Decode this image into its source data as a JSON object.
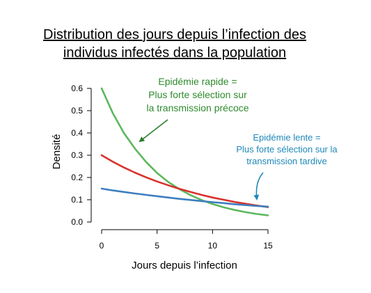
{
  "chart_data": {
    "type": "line",
    "title": "Distribution des jours depuis l’infection des individus infectés dans la population",
    "title_lines": [
      "Distribution des jours depuis l’infection des",
      "individus infectés dans la population"
    ],
    "xlabel": "Jours depuis l’infection",
    "ylabel": "Densité",
    "xlim": [
      0,
      15
    ],
    "ylim": [
      0,
      0.6
    ],
    "x_ticks": [
      0,
      5,
      10,
      15
    ],
    "y_ticks": [
      0.0,
      0.1,
      0.2,
      0.3,
      0.4,
      0.5,
      0.6
    ],
    "x_tick_labels": [
      "0",
      "5",
      "10",
      "15"
    ],
    "y_tick_labels": [
      "0.0",
      "0.1",
      "0.2",
      "0.3",
      "0.4",
      "0.5",
      "0.6"
    ],
    "grid": false,
    "series": [
      {
        "color": "#5cb85c",
        "x": [
          0,
          1,
          2,
          3,
          4,
          5,
          6,
          7,
          8,
          9,
          10,
          11,
          12,
          13,
          14,
          15
        ],
        "values": [
          0.6,
          0.49,
          0.4,
          0.33,
          0.27,
          0.22,
          0.18,
          0.148,
          0.121,
          0.099,
          0.081,
          0.066,
          0.054,
          0.044,
          0.036,
          0.03
        ]
      },
      {
        "color": "#d9322d",
        "x": [
          0,
          1,
          2,
          3,
          4,
          5,
          6,
          7,
          8,
          9,
          10,
          11,
          12,
          13,
          14,
          15
        ],
        "values": [
          0.3,
          0.271,
          0.245,
          0.222,
          0.201,
          0.182,
          0.165,
          0.149,
          0.135,
          0.122,
          0.11,
          0.1,
          0.09,
          0.082,
          0.074,
          0.067
        ]
      },
      {
        "color": "#3d7ebf",
        "x": [
          0,
          1,
          2,
          3,
          4,
          5,
          6,
          7,
          8,
          9,
          10,
          11,
          12,
          13,
          14,
          15
        ],
        "values": [
          0.15,
          0.142,
          0.135,
          0.128,
          0.122,
          0.116,
          0.11,
          0.104,
          0.099,
          0.094,
          0.089,
          0.085,
          0.08,
          0.076,
          0.072,
          0.069
        ]
      }
    ],
    "annotations": [
      {
        "color": "#2e8b2e",
        "lines": [
          "Epidémie rapide =",
          "Plus forte sélection sur",
          "la transmission précoce"
        ]
      },
      {
        "color": "#1f88b8",
        "lines": [
          "Epidémie lente =",
          "Plus forte sélection sur la",
          "transmission tardive"
        ]
      }
    ]
  }
}
